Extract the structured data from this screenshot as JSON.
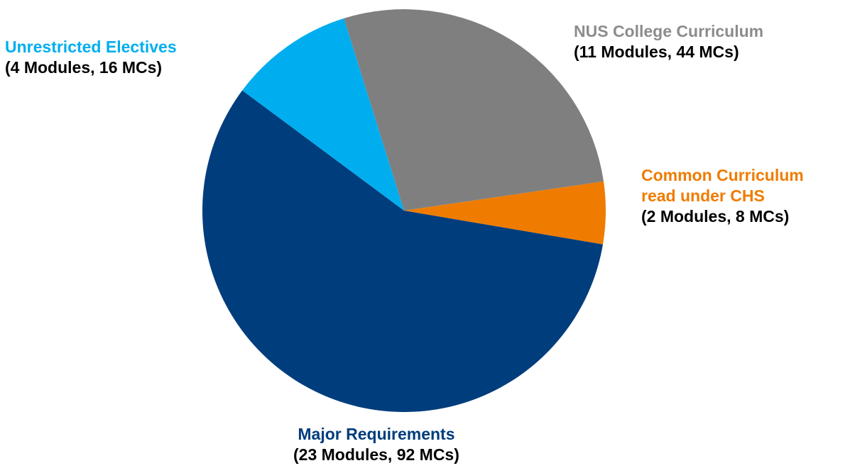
{
  "chart_data": {
    "type": "pie",
    "total_label_unit": "MCs",
    "slices": [
      {
        "name": "Major Requirements",
        "detail": "(23 Modules, 92 MCs)",
        "modules": 23,
        "mcs": 92,
        "color": "#003D7C"
      },
      {
        "name": "Unrestricted Electives",
        "detail": "(4 Modules, 16 MCs)",
        "modules": 4,
        "mcs": 16,
        "color": "#00AEEF"
      },
      {
        "name": "NUS College Curriculum",
        "detail": "(11 Modules, 44 MCs)",
        "modules": 11,
        "mcs": 44,
        "color": "#7F7F7F"
      },
      {
        "name": "Common Curriculum read under CHS",
        "name_lines": [
          "Common Curriculum",
          "read under CHS"
        ],
        "detail": "(2 Modules, 8 MCs)",
        "modules": 2,
        "mcs": 8,
        "color": "#EF7C00"
      }
    ]
  }
}
